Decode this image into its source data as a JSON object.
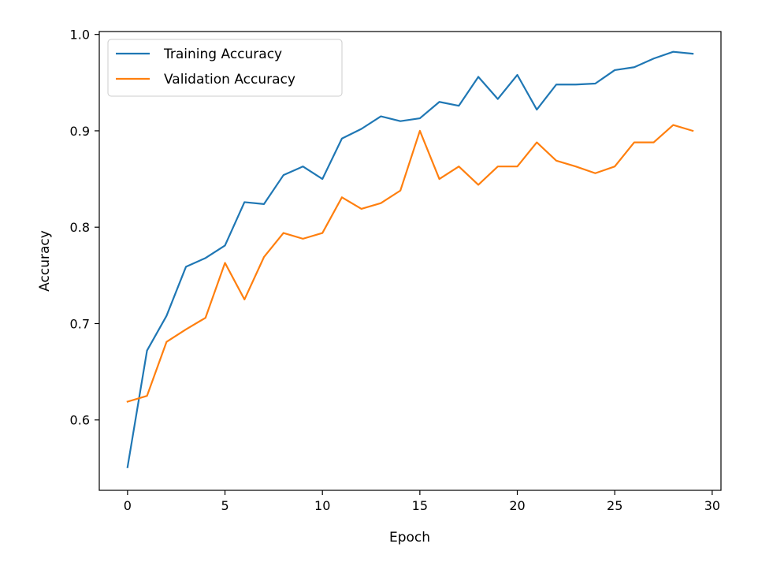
{
  "chart_data": {
    "type": "line",
    "title": "",
    "xlabel": "Epoch",
    "ylabel": "Accuracy",
    "xlim": [
      -1.45,
      30.45
    ],
    "ylim": [
      0.527,
      1.003
    ],
    "xticks": [
      0,
      5,
      10,
      15,
      20,
      25,
      30
    ],
    "yticks": [
      0.6,
      0.7,
      0.8,
      0.9,
      1.0
    ],
    "xtick_labels": [
      "0",
      "5",
      "10",
      "15",
      "20",
      "25",
      "30"
    ],
    "ytick_labels": [
      "0.6",
      "0.7",
      "0.8",
      "0.9",
      "1.0"
    ],
    "grid": false,
    "legend_position": "top-left",
    "x": [
      0,
      1,
      2,
      3,
      4,
      5,
      6,
      7,
      8,
      9,
      10,
      11,
      12,
      13,
      14,
      15,
      16,
      17,
      18,
      19,
      20,
      21,
      22,
      23,
      24,
      25,
      26,
      27,
      28,
      29
    ],
    "series": [
      {
        "name": "Training Accuracy",
        "color": "#1f77b4",
        "values": [
          0.551,
          0.672,
          0.708,
          0.759,
          0.768,
          0.781,
          0.826,
          0.824,
          0.854,
          0.863,
          0.85,
          0.892,
          0.902,
          0.915,
          0.91,
          0.913,
          0.93,
          0.926,
          0.956,
          0.933,
          0.958,
          0.922,
          0.948,
          0.948,
          0.949,
          0.963,
          0.966,
          0.975,
          0.982,
          0.98
        ]
      },
      {
        "name": "Validation Accuracy",
        "color": "#ff7f0e",
        "values": [
          0.619,
          0.625,
          0.681,
          0.694,
          0.706,
          0.763,
          0.725,
          0.769,
          0.794,
          0.788,
          0.794,
          0.831,
          0.819,
          0.825,
          0.838,
          0.9,
          0.85,
          0.863,
          0.844,
          0.863,
          0.863,
          0.888,
          0.869,
          0.863,
          0.856,
          0.863,
          0.888,
          0.888,
          0.906,
          0.9
        ]
      }
    ]
  }
}
